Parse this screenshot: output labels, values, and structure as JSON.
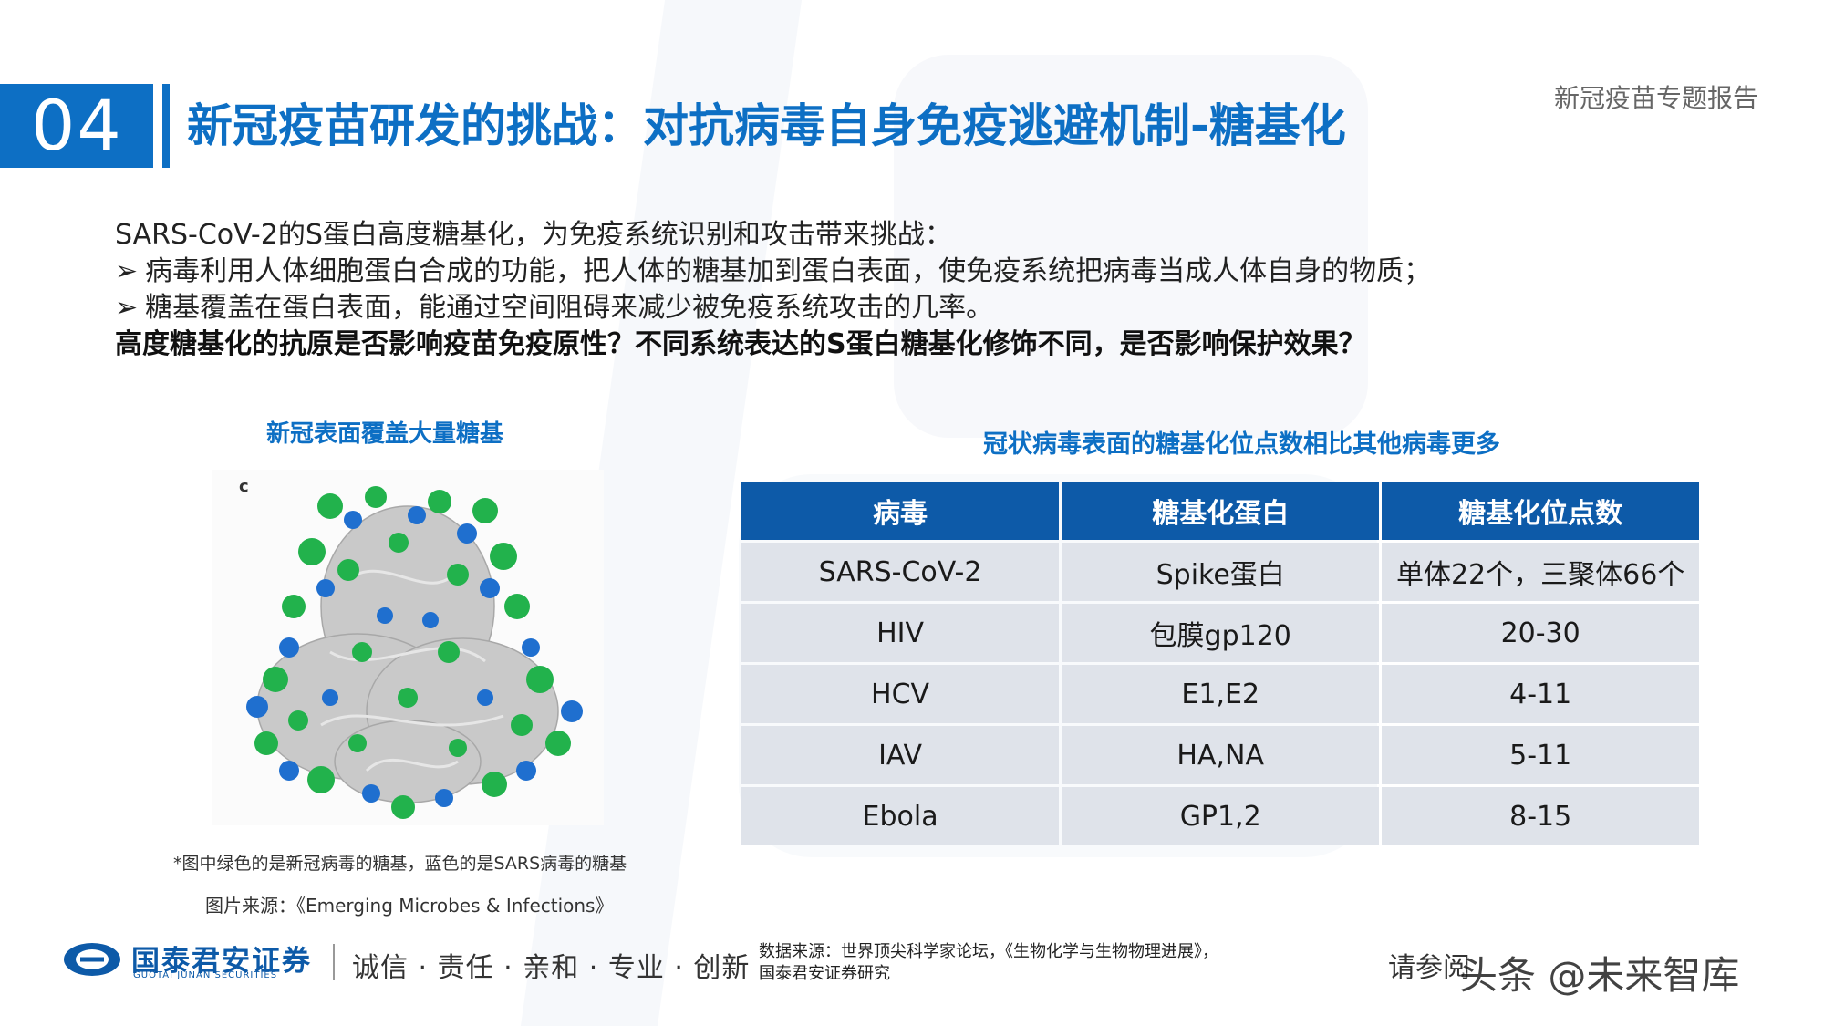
{
  "header": {
    "section_number": "04",
    "title": "新冠疫苗研发的挑战：对抗病毒自身免疫逃避机制-糖基化",
    "report_tag": "新冠疫苗专题报告"
  },
  "intro": {
    "lead": "SARS-CoV-2的S蛋白高度糖基化，为免疫系统识别和攻击带来挑战：",
    "bullets": [
      "病毒利用人体细胞蛋白合成的功能，把人体的糖基加到蛋白表面，使免疫系统把病毒当成人体自身的物质；",
      "糖基覆盖在蛋白表面，能通过空间阻碍来减少被免疫系统攻击的几率。"
    ],
    "bullet_marker": "➢",
    "question": "高度糖基化的抗原是否影响疫苗免疫原性？不同系统表达的S蛋白糖基化修饰不同，是否影响保护效果？"
  },
  "figure": {
    "caption": "新冠表面覆盖大量糖基",
    "panel_label": "c",
    "note": "*图中绿色的是新冠病毒的糖基，蓝色的是SARS病毒的糖基",
    "source": "图片来源：《Emerging Microbes & Infections》",
    "colors": {
      "sars_cov_2_glycan": "#22b24c",
      "sars_glycan": "#1f6fcf",
      "protein": "#c8c8c8"
    }
  },
  "table": {
    "caption": "冠状病毒表面的糖基化位点数相比其他病毒更多",
    "headers": [
      "病毒",
      "糖基化蛋白",
      "糖基化位点数"
    ],
    "rows": [
      [
        "SARS-CoV-2",
        "Spike蛋白",
        "单体22个，三聚体66个"
      ],
      [
        "HIV",
        "包膜gp120",
        "20-30"
      ],
      [
        "HCV",
        "E1,E2",
        "4-11"
      ],
      [
        "IAV",
        "HA,NA",
        "5-11"
      ],
      [
        "Ebola",
        "GP1,2",
        "8-15"
      ]
    ]
  },
  "footer": {
    "company_cn": "国泰君安证券",
    "company_en": "GUOTAI JUNAN SECURITIES",
    "motto": "诚信 · 责任 · 亲和 · 专业 · 创新",
    "data_source_line1": "数据来源：世界顶尖科学家论坛，《生物化学与生物物理进展》，",
    "data_source_line2": "国泰君安证券研究",
    "disclaimer": "请参阅",
    "watermark": "头条 @未来智库"
  },
  "theme": {
    "brand_blue": "#0d6fc4",
    "table_header_blue": "#0d5aa8",
    "table_cell_gray": "#dfe3ea"
  }
}
